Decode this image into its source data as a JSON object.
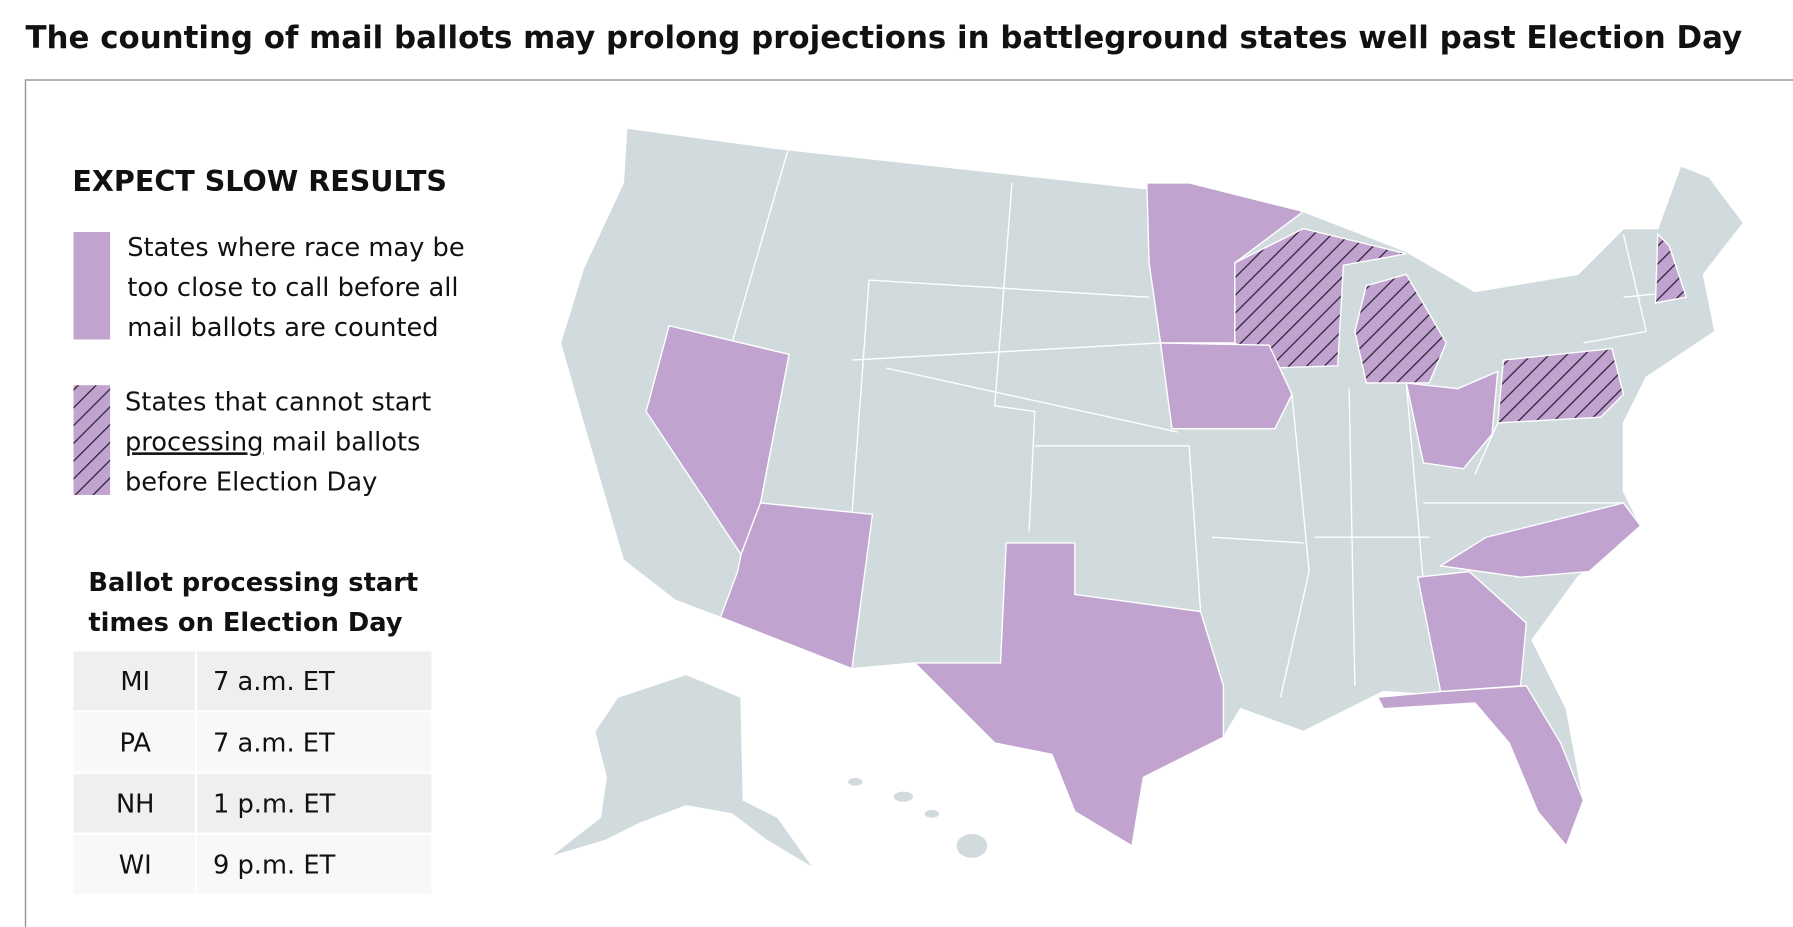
{
  "header": {
    "title": "The counting of mail ballots may prolong projections in battleground states well past Election Day"
  },
  "legend": {
    "heading": "EXPECT SLOW RESULTS",
    "items": [
      {
        "lines": [
          "States where race may be",
          "too close to call before all",
          "mail ballots are counted"
        ]
      },
      {
        "lines": [
          "States that cannot start",
          "processing",
          "mail ballots",
          "before Election Day"
        ]
      }
    ]
  },
  "processing_table": {
    "heading_lines": [
      "Ballot processing start",
      "times on Election Day"
    ],
    "rows": [
      [
        "MI",
        "7 a.m. ET"
      ],
      [
        "PA",
        "7 a.m. ET"
      ],
      [
        "NH",
        "1 p.m. ET"
      ],
      [
        "WI",
        "9 p.m. ET"
      ]
    ]
  }
}
